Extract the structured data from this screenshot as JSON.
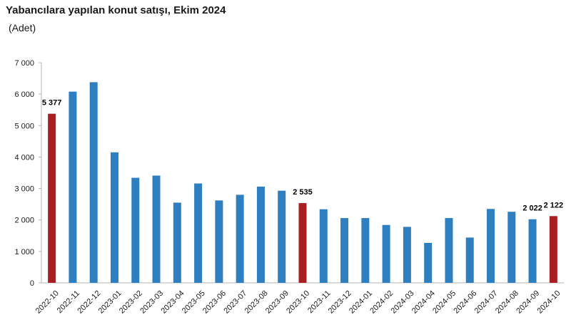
{
  "chart_data": {
    "type": "bar",
    "title": "Yabancılara yapılan konut satışı, Ekim 2024",
    "subtitle": "(Adet)",
    "xlabel": "",
    "ylabel": "",
    "ylim": [
      0,
      7000
    ],
    "yticks": [
      0,
      1000,
      2000,
      3000,
      4000,
      5000,
      6000,
      7000
    ],
    "ytick_labels": [
      "0",
      "1 000",
      "2 000",
      "3 000",
      "4 000",
      "5 000",
      "6 000",
      "7 000"
    ],
    "grid": false,
    "categories": [
      "2022-10",
      "2022-11",
      "2022-12",
      "2023-01",
      "2023-02",
      "2023-03",
      "2023-04",
      "2023-05",
      "2023-06",
      "2023-07",
      "2023-08",
      "2023-09",
      "2023-10",
      "2023-11",
      "2023-12",
      "2024-01",
      "2024-02",
      "2024-03",
      "2024-04",
      "2024-05",
      "2024-06",
      "2024-07",
      "2024-08",
      "2024-09",
      "2024-10"
    ],
    "values": [
      5377,
      6080,
      6380,
      4150,
      3340,
      3410,
      2550,
      3160,
      2620,
      2800,
      3060,
      2930,
      2535,
      2340,
      2060,
      2060,
      1840,
      1780,
      1270,
      2060,
      1440,
      2350,
      2260,
      2022,
      2122
    ],
    "highlight": [
      true,
      false,
      false,
      false,
      false,
      false,
      false,
      false,
      false,
      false,
      false,
      false,
      true,
      false,
      false,
      false,
      false,
      false,
      false,
      false,
      false,
      false,
      false,
      false,
      true
    ],
    "data_labels": [
      {
        "category": "2022-10",
        "text": "5 377"
      },
      {
        "category": "2023-10",
        "text": "2 535"
      },
      {
        "category": "2024-09",
        "text": "2 022"
      },
      {
        "category": "2024-10",
        "text": "2 122"
      }
    ],
    "colors": {
      "normal": "#2e7fbf",
      "highlight": "#a91e22",
      "axis": "#b5b5b5"
    }
  }
}
